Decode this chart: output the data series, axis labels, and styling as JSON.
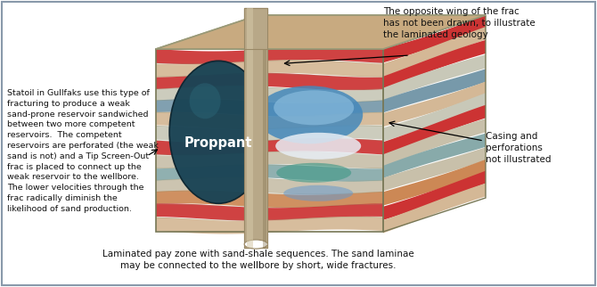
{
  "fig_bg": "#ffffff",
  "border_color": "#8899aa",
  "annotation_top_right": "The opposite wing of the frac\nhas not been drawn, to illustrate\nthe laminated geology",
  "annotation_right": "Casing and\nperforations\nnot illustrated",
  "annotation_left": "Statoil in Gullfaks use this type of\nfracturing to produce a weak\nsand-prone reservoir sandwiched\nbetween two more competent\nreservoirs.  The competent\nreservoirs are perforated (the weak\nsand is not) and a Tip Screen-Out\nfrac is placed to connect up the\nweak reservoir to the wellbore.\nThe lower velocities through the\nfrac radically diminish the\nlikelihood of sand production.",
  "annotation_bottom": "Laminated pay zone with sand-shale sequences. The sand laminae\nmay be connected to the wellbore by short, wide fractures.",
  "proppant_label": "Proppant",
  "top_face_color": "#c8aa80",
  "top_face_edge": "#999977",
  "front_layer_colors": [
    "#cc3333",
    "#d4b896",
    "#cc3333",
    "#c8c8b8",
    "#7799aa",
    "#d4b896",
    "#c8c8b8",
    "#cc3333",
    "#c8c0aa",
    "#88aaaa",
    "#c8c0aa",
    "#cc8855",
    "#cc3333",
    "#d4b896"
  ],
  "right_layer_colors": [
    "#cc3333",
    "#d4b896",
    "#cc3333",
    "#c8c8b8",
    "#7799aa",
    "#d4b896",
    "#c8c8b8",
    "#cc3333",
    "#c8c0aa",
    "#88aaaa",
    "#c8c0aa",
    "#cc8855",
    "#cc3333",
    "#d4b896"
  ],
  "wellbore_color": "#b8a888",
  "wellbore_highlight": "#d4c8a8",
  "proppant_color": "#1a4455",
  "proppant_edge": "#0d2530",
  "frac_blue_dark": "#4488bb",
  "frac_blue_light": "#88bbdd",
  "frac_white": "#ddeeff",
  "frac_teal": "#449988"
}
